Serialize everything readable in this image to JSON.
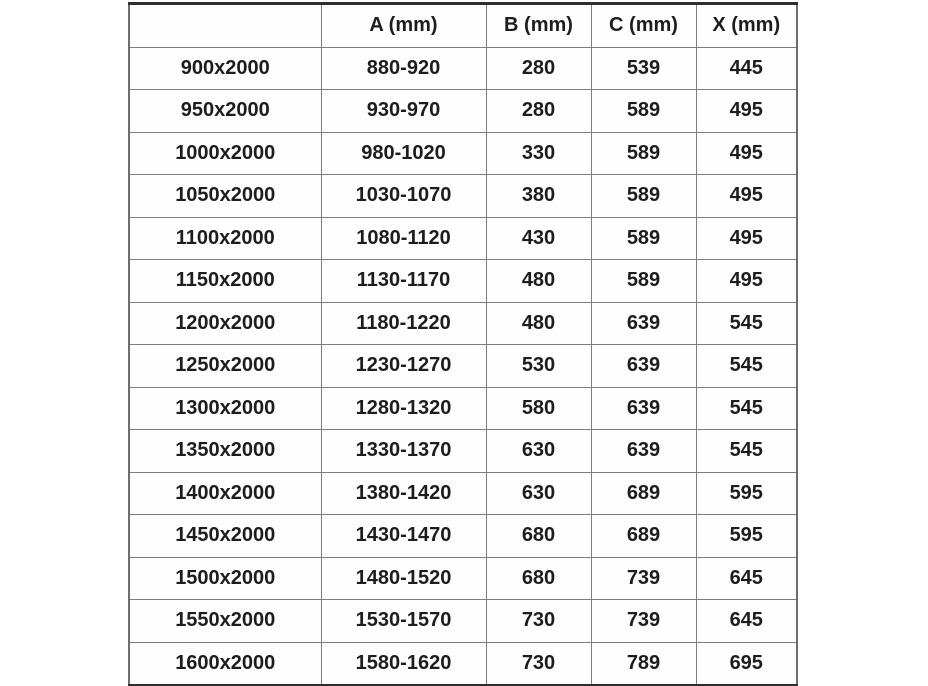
{
  "table": {
    "headers": [
      "",
      "A (mm)",
      "B (mm)",
      "C (mm)",
      "X (mm)"
    ],
    "rows": [
      [
        "900x2000",
        "880-920",
        "280",
        "539",
        "445"
      ],
      [
        "950x2000",
        "930-970",
        "280",
        "589",
        "495"
      ],
      [
        "1000x2000",
        "980-1020",
        "330",
        "589",
        "495"
      ],
      [
        "1050x2000",
        "1030-1070",
        "380",
        "589",
        "495"
      ],
      [
        "1100x2000",
        "1080-1120",
        "430",
        "589",
        "495"
      ],
      [
        "1150x2000",
        "1130-1170",
        "480",
        "589",
        "495"
      ],
      [
        "1200x2000",
        "1180-1220",
        "480",
        "639",
        "545"
      ],
      [
        "1250x2000",
        "1230-1270",
        "530",
        "639",
        "545"
      ],
      [
        "1300x2000",
        "1280-1320",
        "580",
        "639",
        "545"
      ],
      [
        "1350x2000",
        "1330-1370",
        "630",
        "639",
        "545"
      ],
      [
        "1400x2000",
        "1380-1420",
        "630",
        "689",
        "595"
      ],
      [
        "1450x2000",
        "1430-1470",
        "680",
        "689",
        "595"
      ],
      [
        "1500x2000",
        "1480-1520",
        "680",
        "739",
        "645"
      ],
      [
        "1550x2000",
        "1530-1570",
        "730",
        "739",
        "645"
      ],
      [
        "1600x2000",
        "1580-1620",
        "730",
        "789",
        "695"
      ]
    ]
  }
}
